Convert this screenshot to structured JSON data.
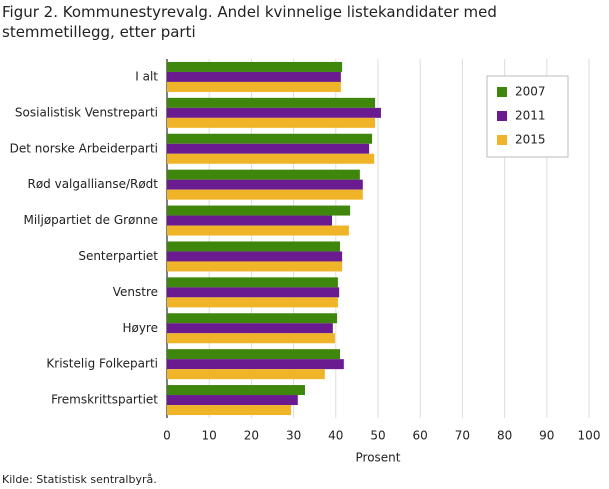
{
  "chart_data": {
    "type": "barh",
    "title": "Figur 2. Kommunestyrevalg. Andel kvinnelige listekandidater med stemmetillegg, etter parti",
    "x_label": "Prosent",
    "source": "Kilde: Statistisk sentralbyrå.",
    "categories": [
      "I alt",
      "Sosialistisk Venstreparti",
      "Det norske Arbeiderparti",
      "Rød valgallianse/Rødt",
      "Miljøpartiet de Grønne",
      "Senterpartiet",
      "Venstre",
      "Høyre",
      "Kristelig Folkeparti",
      "Fremskrittspartiet"
    ],
    "series": [
      {
        "name": "2007",
        "color": "#3f870c",
        "values": [
          41.5,
          49.3,
          48.6,
          45.7,
          43.4,
          41.0,
          40.5,
          40.3,
          41.0,
          32.7
        ]
      },
      {
        "name": "2011",
        "color": "#6a1b8f",
        "values": [
          41.2,
          50.7,
          47.9,
          46.4,
          39.1,
          41.5,
          40.8,
          39.3,
          41.9,
          31.0
        ]
      },
      {
        "name": "2015",
        "color": "#f0b428",
        "values": [
          41.2,
          49.3,
          49.1,
          46.4,
          43.1,
          41.5,
          40.5,
          39.8,
          37.4,
          29.4
        ]
      }
    ],
    "xlim": [
      0,
      100
    ],
    "xticks": [
      0,
      10,
      20,
      30,
      40,
      50,
      60,
      70,
      80,
      90,
      100
    ],
    "grid": true,
    "legend": "upper-right"
  }
}
